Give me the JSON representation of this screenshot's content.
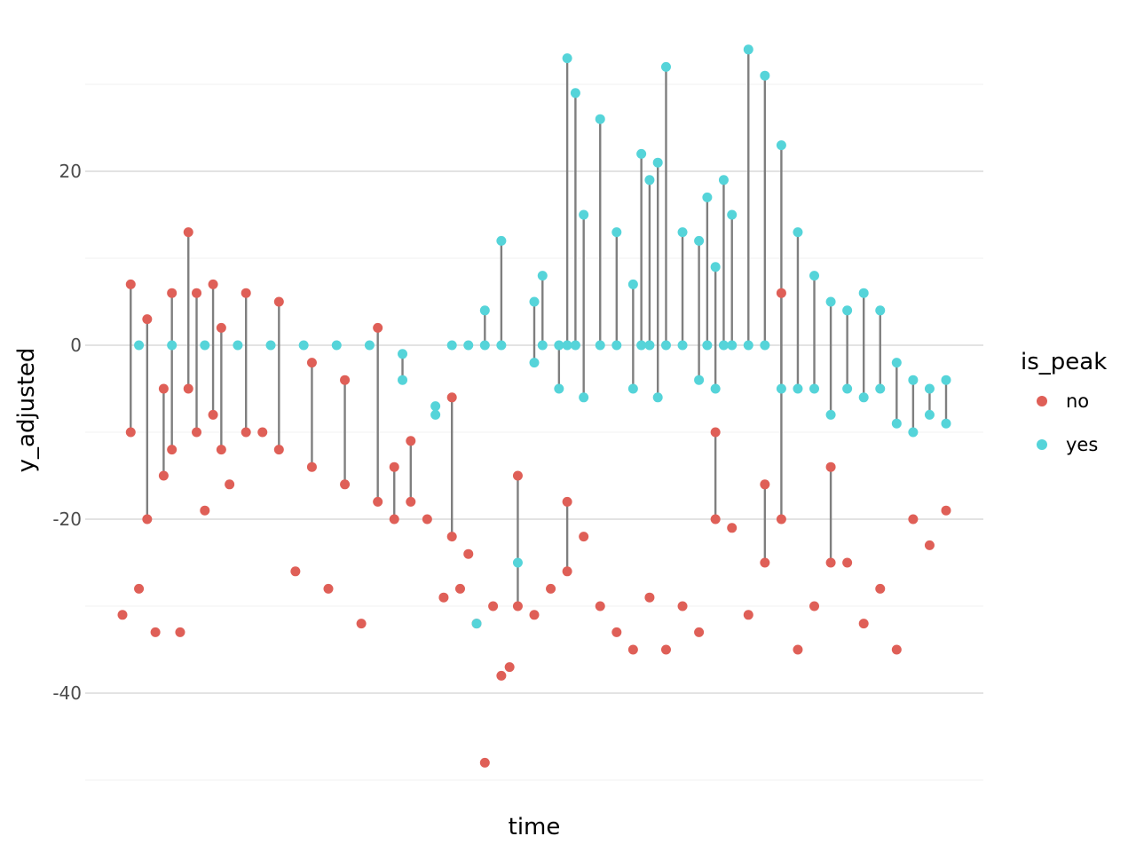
{
  "chart_data": {
    "type": "scatter",
    "title": "",
    "xlabel": "time",
    "ylabel": "y_adjusted",
    "ylim": [
      -50,
      35
    ],
    "yticks": [
      -40,
      -20,
      0,
      20
    ],
    "ytick_labels": [
      "-40",
      "-20",
      "0",
      "20"
    ],
    "xticks": [],
    "grid": true,
    "legend": {
      "title": "is_peak",
      "placement": "right",
      "entries": [
        {
          "label": "no",
          "color": "#DF5F57"
        },
        {
          "label": "yes",
          "color": "#55D4D9"
        }
      ]
    },
    "line_color": "#7F7F7F",
    "series": [
      {
        "name": "no",
        "color": "#DF5F57",
        "x": [
          0.0,
          0.01,
          0.02,
          0.03,
          0.04,
          0.05,
          0.06,
          0.07,
          0.08,
          0.09,
          0.1,
          0.11,
          0.12,
          0.13,
          0.15,
          0.17,
          0.19,
          0.21,
          0.23,
          0.25,
          0.27,
          0.29,
          0.31,
          0.33,
          0.35,
          0.37,
          0.39,
          0.4,
          0.41,
          0.42,
          0.43,
          0.44,
          0.45,
          0.46,
          0.47,
          0.48,
          0.5,
          0.52,
          0.54,
          0.56,
          0.58,
          0.6,
          0.62,
          0.64,
          0.66,
          0.68,
          0.7,
          0.72,
          0.74,
          0.76,
          0.78,
          0.8,
          0.82,
          0.84,
          0.86,
          0.88,
          0.9,
          0.92,
          0.94,
          0.96,
          0.98,
          1.0
        ],
        "y": [
          -31,
          7,
          -28,
          3,
          -33,
          -5,
          6,
          -33,
          13,
          6,
          -19,
          7,
          2,
          -16,
          6,
          -10,
          5,
          -26,
          -2,
          -28,
          -4,
          -32,
          2,
          -14,
          -11,
          -20,
          -29,
          -6,
          -28,
          -24,
          -32,
          -48,
          -30,
          -38,
          -37,
          -15,
          -31,
          -28,
          -18,
          -22,
          -30,
          -33,
          -35,
          -29,
          -35,
          -30,
          -33,
          -10,
          -21,
          -31,
          -16,
          6,
          -35,
          -30,
          -14,
          -25,
          -32,
          -28,
          -35,
          -20,
          -23,
          -19
        ],
        "y_low": [
          -31,
          -10,
          -28,
          -20,
          -33,
          -15,
          -12,
          -33,
          -5,
          -10,
          -19,
          -8,
          -12,
          -16,
          -10,
          -10,
          -12,
          -26,
          -14,
          -28,
          -16,
          -32,
          -18,
          -20,
          -18,
          -20,
          -29,
          -22,
          -28,
          -24,
          -32,
          -48,
          -30,
          -38,
          -37,
          -30,
          -31,
          -28,
          -26,
          -22,
          -30,
          -33,
          -35,
          -29,
          -35,
          -30,
          -33,
          -20,
          -21,
          -31,
          -25,
          -20,
          -35,
          -30,
          -25,
          -25,
          -32,
          -28,
          -35,
          -20,
          -23,
          -19
        ]
      },
      {
        "name": "yes",
        "color": "#55D4D9",
        "x": [
          0.02,
          0.06,
          0.1,
          0.14,
          0.18,
          0.22,
          0.26,
          0.3,
          0.34,
          0.38,
          0.4,
          0.42,
          0.43,
          0.44,
          0.46,
          0.48,
          0.5,
          0.51,
          0.53,
          0.54,
          0.55,
          0.56,
          0.58,
          0.6,
          0.62,
          0.63,
          0.64,
          0.65,
          0.66,
          0.68,
          0.7,
          0.71,
          0.72,
          0.73,
          0.74,
          0.76,
          0.78,
          0.8,
          0.82,
          0.84,
          0.86,
          0.88,
          0.9,
          0.92,
          0.94,
          0.96,
          0.98,
          1.0
        ],
        "y": [
          0,
          0,
          0,
          0,
          0,
          0,
          0,
          0,
          -1,
          -7,
          0,
          0,
          -32,
          4,
          12,
          -25,
          5,
          8,
          0,
          33,
          29,
          15,
          26,
          13,
          7,
          22,
          19,
          21,
          32,
          13,
          12,
          17,
          9,
          19,
          15,
          34,
          31,
          23,
          13,
          8,
          5,
          4,
          6,
          4,
          -2,
          -4,
          -5,
          -4
        ],
        "y_low": [
          0,
          0,
          0,
          0,
          0,
          0,
          0,
          0,
          -4,
          -8,
          0,
          0,
          -32,
          0,
          0,
          -25,
          -2,
          0,
          -5,
          0,
          0,
          -6,
          0,
          0,
          -5,
          0,
          0,
          -6,
          0,
          0,
          -4,
          0,
          -5,
          0,
          0,
          0,
          0,
          -5,
          -5,
          -5,
          -8,
          -5,
          -6,
          -5,
          -9,
          -10,
          -8,
          -9
        ]
      }
    ]
  }
}
